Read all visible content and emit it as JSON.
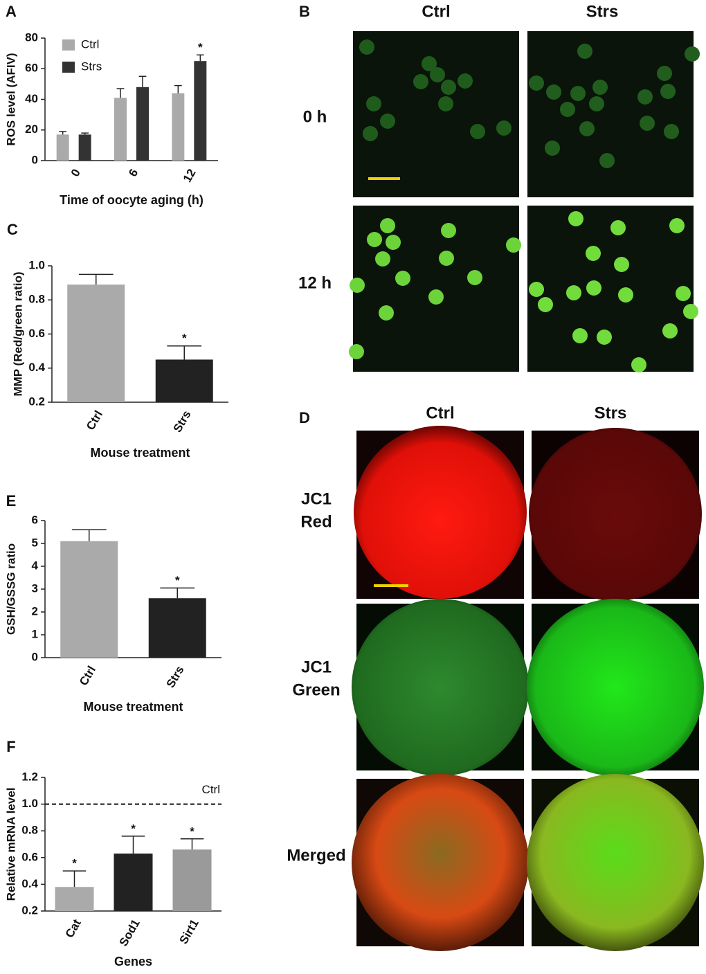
{
  "chart_data": [
    {
      "type": "bar",
      "letter": "A",
      "ylabel": "ROS level (AFIV)",
      "xlabel": "Time of oocyte aging (h)",
      "categories": [
        "0",
        "6",
        "12"
      ],
      "series": [
        {
          "name": "Ctrl",
          "color": "#aaaaaa",
          "values": [
            17,
            41,
            44
          ],
          "errors": [
            2,
            6,
            5
          ],
          "significance": [
            null,
            null,
            null
          ]
        },
        {
          "name": "Strs",
          "color": "#333333",
          "values": [
            17,
            48,
            65
          ],
          "errors": [
            1,
            7,
            4
          ],
          "significance": [
            null,
            null,
            "*"
          ]
        }
      ],
      "ylim": [
        0,
        80
      ],
      "yticks": [
        0,
        20,
        40,
        60,
        80
      ]
    },
    {
      "type": "bar",
      "letter": "C",
      "ylabel": "MMP (Red/green ratio)",
      "xlabel": "Mouse treatment",
      "categories": [
        "Ctrl",
        "Strs"
      ],
      "values": [
        0.89,
        0.45
      ],
      "errors": [
        0.06,
        0.08
      ],
      "colors": [
        "#aaaaaa",
        "#222222"
      ],
      "significance": [
        null,
        "*"
      ],
      "ylim": [
        0.2,
        1.0
      ],
      "yticks": [
        0.2,
        0.4,
        0.6,
        0.8,
        {
          "value": 1.0,
          "label": "1.0"
        }
      ]
    },
    {
      "type": "bar",
      "letter": "E",
      "ylabel": "GSH/GSSG ratio",
      "xlabel": "Mouse treatment",
      "categories": [
        "Ctrl",
        "Strs"
      ],
      "values": [
        5.1,
        2.6
      ],
      "errors": [
        0.5,
        0.45
      ],
      "colors": [
        "#aaaaaa",
        "#222222"
      ],
      "significance": [
        null,
        "*"
      ],
      "ylim": [
        0,
        6
      ],
      "yticks": [
        0,
        1,
        2,
        3,
        4,
        5,
        6
      ]
    },
    {
      "type": "bar",
      "letter": "F",
      "ylabel": "Relative mRNA level",
      "xlabel": "Genes",
      "categories": [
        "Cat",
        "Sod1",
        "Sirt1"
      ],
      "values": [
        0.38,
        0.63,
        0.66
      ],
      "errors": [
        0.12,
        0.13,
        0.08
      ],
      "colors": [
        "#aaaaaa",
        "#222222",
        "#9a9a9a"
      ],
      "significance": [
        "*",
        "*",
        "*"
      ],
      "refline": {
        "value": 1.0,
        "label": "Ctrl"
      },
      "ylim": [
        0.2,
        1.2
      ],
      "yticks": [
        0.2,
        0.4,
        0.6,
        0.8,
        {
          "value": 1.0,
          "label": "1.0"
        },
        1.2
      ]
    }
  ],
  "figures": [
    {
      "letter": "B",
      "columns": [
        "Ctrl",
        "Strs"
      ],
      "rows": [
        [
          "0 h"
        ],
        [
          "12 h"
        ]
      ]
    },
    {
      "letter": "D",
      "columns": [
        "Ctrl",
        "Strs"
      ],
      "rows": [
        [
          "JC1",
          "Red"
        ],
        [
          "JC1",
          "Green"
        ],
        [
          "Merged"
        ]
      ]
    }
  ]
}
